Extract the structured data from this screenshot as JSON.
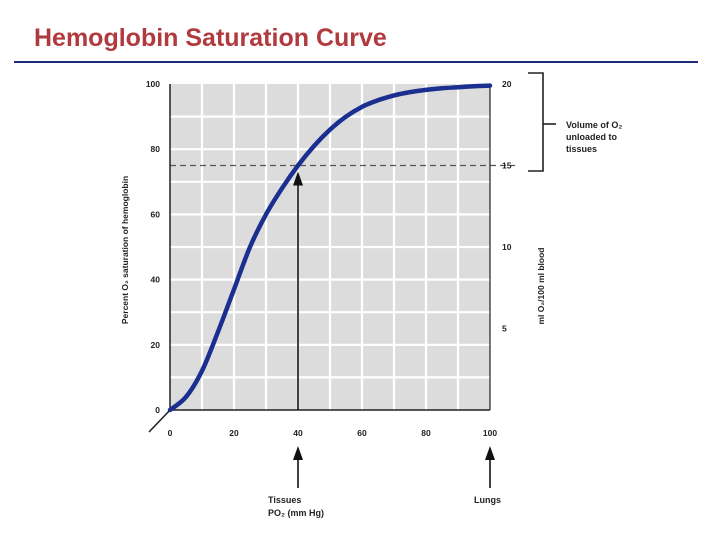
{
  "slide": {
    "title": "Hemoglobin Saturation Curve"
  },
  "chart_data": {
    "type": "line",
    "title": "",
    "x_ticks": [
      "0",
      "20",
      "40",
      "60",
      "80",
      "100"
    ],
    "y_left_ticks": [
      "0",
      "20",
      "40",
      "60",
      "80",
      "100"
    ],
    "y_right_ticks": [
      "5",
      "10",
      "15",
      "20"
    ],
    "y_left_label": "Percent O₂ saturation of hemoglobin",
    "y_right_label": "ml O₂/100 ml blood",
    "xlim": [
      0,
      100
    ],
    "ylim_left": [
      0,
      100
    ],
    "ylim_right": [
      0,
      20
    ],
    "grid": true,
    "series": [
      {
        "x": [
          0,
          5,
          10,
          15,
          20,
          25,
          30,
          35,
          40,
          45,
          50,
          55,
          60,
          65,
          70,
          75,
          80,
          85,
          90,
          95,
          100
        ],
        "values": [
          0,
          4,
          12,
          24,
          37,
          50,
          60,
          68,
          75,
          81,
          86,
          90,
          93,
          95,
          96.5,
          97.5,
          98.2,
          98.7,
          99,
          99.3,
          99.5
        ],
        "color": "#1a2f8f"
      }
    ],
    "reference_line": {
      "y": 75,
      "style": "dashed"
    },
    "annotations": {
      "unloaded": [
        "Volume of O₂",
        "unloaded to",
        "tissues"
      ],
      "tissues": [
        "Tissues",
        "PO₂ (mm Hg)"
      ],
      "lungs": "Lungs"
    }
  }
}
